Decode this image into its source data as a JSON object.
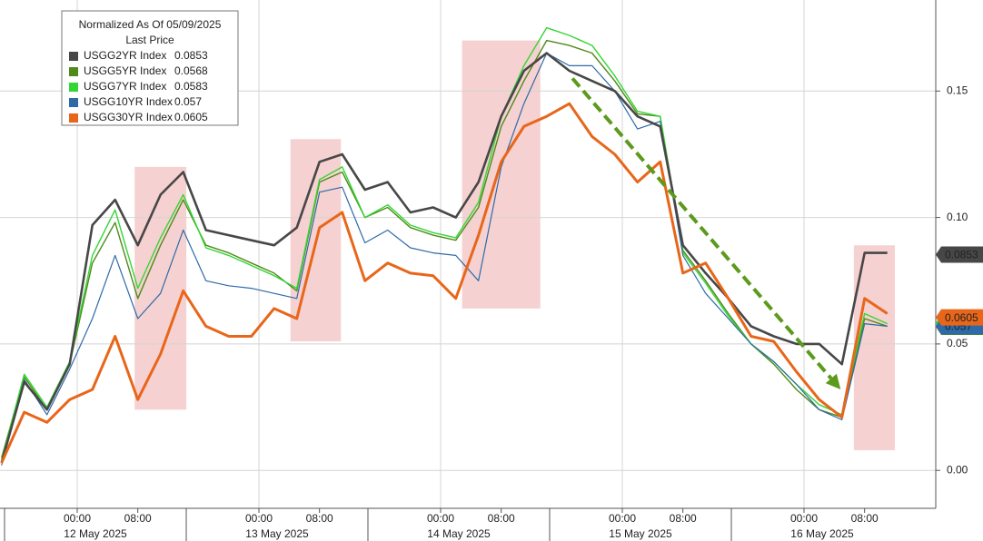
{
  "chart_data": {
    "type": "line",
    "legend_title": "Normalized As Of 05/09/2025",
    "legend_subtitle": "Last Price",
    "x": [
      "2025-05-11T14:00",
      "2025-05-11T17:00",
      "2025-05-11T20:00",
      "2025-05-11T23:00",
      "2025-05-12T02:00",
      "2025-05-12T05:00",
      "2025-05-12T08:00",
      "2025-05-12T11:00",
      "2025-05-12T14:00",
      "2025-05-12T17:00",
      "2025-05-12T20:00",
      "2025-05-12T23:00",
      "2025-05-13T02:00",
      "2025-05-13T05:00",
      "2025-05-13T08:00",
      "2025-05-13T11:00",
      "2025-05-13T14:00",
      "2025-05-13T17:00",
      "2025-05-13T20:00",
      "2025-05-13T23:00",
      "2025-05-14T02:00",
      "2025-05-14T05:00",
      "2025-05-14T08:00",
      "2025-05-14T11:00",
      "2025-05-14T14:00",
      "2025-05-14T17:00",
      "2025-05-14T20:00",
      "2025-05-14T23:00",
      "2025-05-15T02:00",
      "2025-05-15T05:00",
      "2025-05-15T08:00",
      "2025-05-15T11:00",
      "2025-05-15T14:00",
      "2025-05-15T17:00",
      "2025-05-15T20:00",
      "2025-05-15T23:00",
      "2025-05-16T02:00",
      "2025-05-16T05:00",
      "2025-05-16T08:00",
      "2025-05-16T11:00"
    ],
    "series": [
      {
        "name": "USGG5YR Index",
        "color": "#4f8a1a",
        "line_width": 1.4,
        "last_price": 0.0568,
        "values": [
          0.005,
          0.037,
          0.024,
          0.042,
          0.082,
          0.098,
          0.068,
          0.089,
          0.107,
          0.089,
          0.086,
          0.082,
          0.078,
          0.071,
          0.114,
          0.118,
          0.1,
          0.104,
          0.096,
          0.093,
          0.091,
          0.104,
          0.136,
          0.154,
          0.17,
          0.168,
          0.165,
          0.154,
          0.141,
          0.14,
          0.087,
          0.075,
          0.062,
          0.05,
          0.042,
          0.032,
          0.024,
          0.021,
          0.06,
          0.057
        ]
      },
      {
        "name": "USGG7YR Index",
        "color": "#33d633",
        "line_width": 1.4,
        "last_price": 0.0583,
        "values": [
          0.004,
          0.038,
          0.025,
          0.043,
          0.085,
          0.103,
          0.072,
          0.092,
          0.109,
          0.088,
          0.085,
          0.081,
          0.077,
          0.072,
          0.115,
          0.12,
          0.1,
          0.105,
          0.097,
          0.094,
          0.092,
          0.106,
          0.14,
          0.16,
          0.175,
          0.172,
          0.168,
          0.156,
          0.142,
          0.14,
          0.086,
          0.074,
          0.061,
          0.05,
          0.043,
          0.034,
          0.026,
          0.022,
          0.062,
          0.058
        ]
      },
      {
        "name": "USGG10YR Index",
        "color": "#2e6aa8",
        "line_width": 1.2,
        "last_price": 0.057,
        "values": [
          0.002,
          0.036,
          0.022,
          0.04,
          0.06,
          0.085,
          0.06,
          0.07,
          0.095,
          0.075,
          0.073,
          0.072,
          0.07,
          0.068,
          0.11,
          0.112,
          0.09,
          0.095,
          0.088,
          0.086,
          0.085,
          0.075,
          0.12,
          0.145,
          0.165,
          0.16,
          0.16,
          0.15,
          0.135,
          0.138,
          0.085,
          0.07,
          0.06,
          0.05,
          0.043,
          0.034,
          0.024,
          0.02,
          0.058,
          0.057
        ]
      },
      {
        "name": "USGG2YR Index",
        "color": "#474747",
        "line_width": 2.6,
        "last_price": 0.0853,
        "values": [
          0.003,
          0.035,
          0.024,
          0.042,
          0.097,
          0.107,
          0.089,
          0.109,
          0.118,
          0.095,
          0.093,
          0.091,
          0.089,
          0.096,
          0.122,
          0.125,
          0.111,
          0.114,
          0.102,
          0.104,
          0.1,
          0.114,
          0.14,
          0.158,
          0.165,
          0.158,
          0.154,
          0.15,
          0.14,
          0.136,
          0.089,
          0.078,
          0.068,
          0.057,
          0.053,
          0.05,
          0.05,
          0.042,
          0.086,
          0.086
        ]
      },
      {
        "name": "USGG30YR Index",
        "color": "#e8661a",
        "line_width": 3,
        "last_price": 0.0605,
        "values": [
          0.003,
          0.023,
          0.019,
          0.028,
          0.032,
          0.053,
          0.028,
          0.046,
          0.071,
          0.057,
          0.053,
          0.053,
          0.064,
          0.06,
          0.096,
          0.102,
          0.075,
          0.082,
          0.078,
          0.077,
          0.068,
          0.093,
          0.122,
          0.136,
          0.14,
          0.145,
          0.132,
          0.125,
          0.114,
          0.122,
          0.078,
          0.082,
          0.068,
          0.053,
          0.051,
          0.039,
          0.028,
          0.021,
          0.068,
          0.062
        ]
      }
    ],
    "legend_order": [
      3,
      0,
      1,
      2,
      4
    ],
    "xlim": [
      "2025-05-11T13:48",
      "2025-05-16T17:24"
    ],
    "xticks": [
      {
        "value": "2025-05-12T00:00",
        "label": "00:00"
      },
      {
        "value": "2025-05-12T08:00",
        "label": "08:00"
      },
      {
        "value": "2025-05-13T00:00",
        "label": "00:00"
      },
      {
        "value": "2025-05-13T08:00",
        "label": "08:00"
      },
      {
        "value": "2025-05-14T00:00",
        "label": "00:00"
      },
      {
        "value": "2025-05-14T08:00",
        "label": "08:00"
      },
      {
        "value": "2025-05-15T00:00",
        "label": "00:00"
      },
      {
        "value": "2025-05-15T08:00",
        "label": "08:00"
      },
      {
        "value": "2025-05-16T00:00",
        "label": "00:00"
      },
      {
        "value": "2025-05-16T08:00",
        "label": "08:00"
      }
    ],
    "date_ticks": [
      {
        "value": "2025-05-12T00:00",
        "label": "12 May 2025"
      },
      {
        "value": "2025-05-13T00:00",
        "label": "13 May 2025"
      },
      {
        "value": "2025-05-14T00:00",
        "label": "14 May 2025"
      },
      {
        "value": "2025-05-15T00:00",
        "label": "15 May 2025"
      },
      {
        "value": "2025-05-16T00:00",
        "label": "16 May 2025"
      }
    ],
    "ylim": [
      -0.015,
      0.186
    ],
    "yticks": [
      {
        "value": 0,
        "label": "0.00"
      },
      {
        "value": 0.05,
        "label": "0.05"
      },
      {
        "value": 0.1,
        "label": "0.10"
      },
      {
        "value": 0.15,
        "label": "0.15"
      }
    ],
    "grid": true,
    "shaded_regions": [
      {
        "x": [
          "2025-05-12T07:35",
          "2025-05-12T14:25"
        ],
        "y": [
          0.024,
          0.12
        ]
      },
      {
        "x": [
          "2025-05-13T04:10",
          "2025-05-13T10:50"
        ],
        "y": [
          0.051,
          0.131
        ]
      },
      {
        "x": [
          "2025-05-14T02:50",
          "2025-05-14T13:10"
        ],
        "y": [
          0.064,
          0.17
        ]
      },
      {
        "x": [
          "2025-05-16T06:35",
          "2025-05-16T12:00"
        ],
        "y": [
          0.008,
          0.089
        ]
      }
    ],
    "shade_color": "#f5c9c9",
    "arrow": {
      "x": [
        "2025-05-14T17:25",
        "2025-05-16T04:50"
      ],
      "y": [
        0.155,
        0.032
      ],
      "color": "#5c9a1c"
    }
  }
}
